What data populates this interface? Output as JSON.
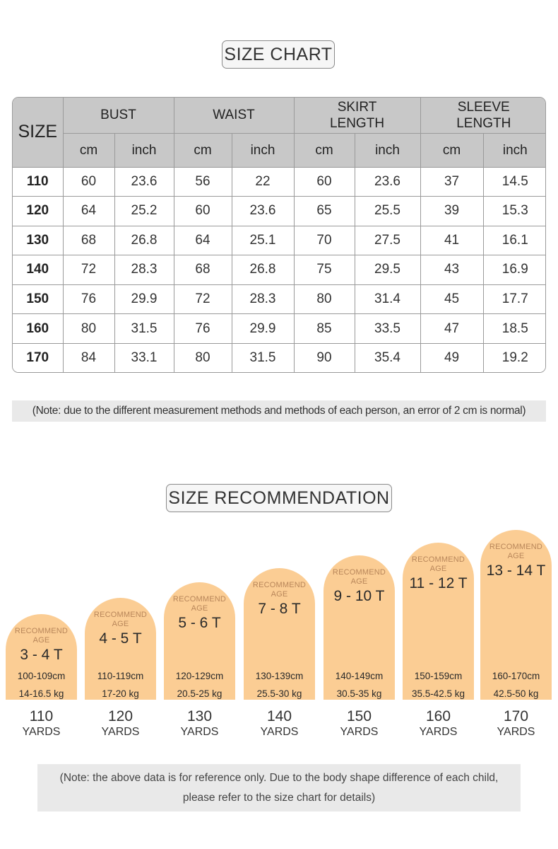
{
  "size_chart": {
    "title": "SIZE CHART",
    "header": {
      "size": "SIZE",
      "groups": [
        {
          "label_line1": "BUST",
          "label_line2": ""
        },
        {
          "label_line1": "WAIST",
          "label_line2": ""
        },
        {
          "label_line1": "SKIRT",
          "label_line2": "LENGTH"
        },
        {
          "label_line1": "SLEEVE",
          "label_line2": "LENGTH"
        }
      ],
      "units": [
        "cm",
        "inch",
        "cm",
        "inch",
        "cm",
        "inch",
        "cm",
        "inch"
      ]
    },
    "rows": [
      [
        "110",
        "60",
        "23.6",
        "56",
        "22",
        "60",
        "23.6",
        "37",
        "14.5"
      ],
      [
        "120",
        "64",
        "25.2",
        "60",
        "23.6",
        "65",
        "25.5",
        "39",
        "15.3"
      ],
      [
        "130",
        "68",
        "26.8",
        "64",
        "25.1",
        "70",
        "27.5",
        "41",
        "16.1"
      ],
      [
        "140",
        "72",
        "28.3",
        "68",
        "26.8",
        "75",
        "29.5",
        "43",
        "16.9"
      ],
      [
        "150",
        "76",
        "29.9",
        "72",
        "28.3",
        "80",
        "31.4",
        "45",
        "17.7"
      ],
      [
        "160",
        "80",
        "31.5",
        "76",
        "29.9",
        "85",
        "33.5",
        "47",
        "18.5"
      ],
      [
        "170",
        "84",
        "33.1",
        "80",
        "31.5",
        "90",
        "35.4",
        "49",
        "19.2"
      ]
    ],
    "note": "(Note: due to the different measurement methods and methods of each person, an error of 2 cm is normal)"
  },
  "size_recommendation": {
    "title": "SIZE RECOMMENDATION",
    "arch_color": "#fbcd94",
    "items": [
      {
        "rec_line1": "RECOMMEND",
        "rec_line2": "AGE",
        "age": "3 - 4 T",
        "height": "100-109cm",
        "weight": "14-16.5 kg",
        "size": "110",
        "unit": "YARDS"
      },
      {
        "rec_line1": "RECOMMEND",
        "rec_line2": "AGE",
        "age": "4 - 5 T",
        "height": "110-119cm",
        "weight": "17-20 kg",
        "size": "120",
        "unit": "YARDS"
      },
      {
        "rec_line1": "RECOMMEND",
        "rec_line2": "AGE",
        "age": "5 - 6 T",
        "height": "120-129cm",
        "weight": "20.5-25 kg",
        "size": "130",
        "unit": "YARDS"
      },
      {
        "rec_line1": "RECOMMEND",
        "rec_line2": "AGE",
        "age": "7 - 8 T",
        "height": "130-139cm",
        "weight": "25.5-30 kg",
        "size": "140",
        "unit": "YARDS"
      },
      {
        "rec_line1": "RECOMMEND",
        "rec_line2": "AGE",
        "age": "9 - 10 T",
        "height": "140-149cm",
        "weight": "30.5-35 kg",
        "size": "150",
        "unit": "YARDS"
      },
      {
        "rec_line1": "RECOMMEND",
        "rec_line2": "AGE",
        "age": "11 - 12 T",
        "height": "150-159cm",
        "weight": "35.5-42.5 kg",
        "size": "160",
        "unit": "YARDS"
      },
      {
        "rec_line1": "RECOMMEND",
        "rec_line2": "AGE",
        "age": "13 - 14 T",
        "height": "160-170cm",
        "weight": "42.5-50 kg",
        "size": "170",
        "unit": "YARDS"
      }
    ],
    "note_line1": "(Note: the above data is for reference only. Due to the body shape difference of each child,",
    "note_line2": "please refer to the size chart for details)"
  }
}
